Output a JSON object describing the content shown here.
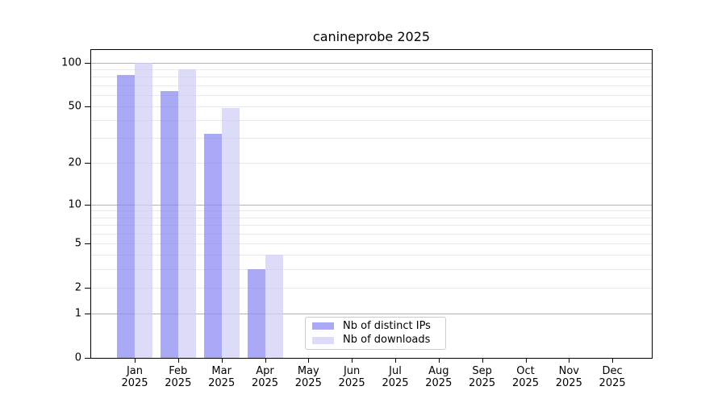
{
  "figure": {
    "title": "canineprobe 2025"
  },
  "chart_data": {
    "type": "bar",
    "title": "canineprobe 2025",
    "xlabel": "",
    "ylabel": "",
    "yscale": "log1p",
    "ylim": [
      0,
      122
    ],
    "grid": "on",
    "legend_position": "bottom-center-inside",
    "categories": [
      "Jan 2025",
      "Feb 2025",
      "Mar 2025",
      "Apr 2025",
      "May 2025",
      "Jun 2025",
      "Jul 2025",
      "Aug 2025",
      "Sep 2025",
      "Oct 2025",
      "Nov 2025",
      "Dec 2025"
    ],
    "series": [
      {
        "name": "Nb of distinct IPs",
        "key": "distinct-ips",
        "color": "#a9a9f6",
        "values": [
          82,
          64,
          32,
          3,
          0,
          0,
          0,
          0,
          0,
          0,
          0,
          0
        ]
      },
      {
        "name": "Nb of downloads",
        "key": "downloads",
        "color": "#dcdcf8",
        "values": [
          100,
          90,
          49,
          4,
          0,
          0,
          0,
          0,
          0,
          0,
          0,
          0
        ]
      }
    ],
    "yticks": [
      0,
      1,
      2,
      5,
      10,
      20,
      50,
      100
    ],
    "gridlines": {
      "major": [
        1,
        10,
        100
      ],
      "minor": [
        2,
        3,
        4,
        5,
        6,
        7,
        8,
        9,
        20,
        30,
        40,
        50,
        60,
        70,
        80,
        90
      ]
    }
  }
}
